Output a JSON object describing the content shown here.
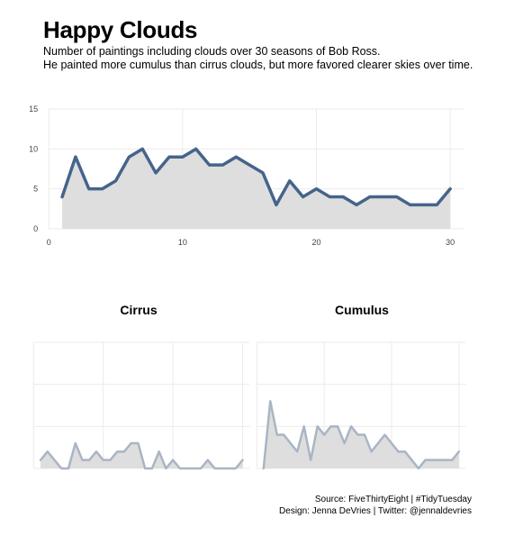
{
  "header": {
    "title": "Happy Clouds",
    "subtitle_line1": "Number of paintings including clouds over 30 seasons of Bob Ross.",
    "subtitle_line2": "He painted more cumulus than cirrus clouds, but more favored clearer skies over time."
  },
  "caption": {
    "line1": "Source: FiveThirtyEight | #TidyTuesday",
    "line2": "Design: Jenna DeVries | Twitter: @jennaldevries"
  },
  "colors": {
    "main_line": "#45648a",
    "facet_line": "#a9b5c4",
    "area_fill": "#dedede",
    "grid": "#ebebeb"
  },
  "chart_data": [
    {
      "type": "area",
      "title": "",
      "xlabel": "",
      "ylabel": "",
      "x": [
        1,
        2,
        3,
        4,
        5,
        6,
        7,
        8,
        9,
        10,
        11,
        12,
        13,
        14,
        15,
        16,
        17,
        18,
        19,
        20,
        21,
        22,
        23,
        24,
        25,
        26,
        27,
        28,
        29,
        30
      ],
      "values": [
        4,
        9,
        5,
        5,
        6,
        9,
        10,
        7,
        9,
        9,
        10,
        8,
        8,
        9,
        8,
        7,
        3,
        6,
        4,
        5,
        4,
        4,
        3,
        4,
        4,
        4,
        3,
        3,
        3,
        5
      ],
      "xlim": [
        0,
        31
      ],
      "ylim": [
        0,
        15
      ],
      "xticks": [
        0,
        10,
        20,
        30
      ],
      "yticks": [
        0,
        5,
        10,
        15
      ],
      "grid": true
    },
    {
      "type": "area",
      "facet": "Cirrus",
      "x": [
        1,
        2,
        3,
        4,
        5,
        6,
        7,
        8,
        9,
        10,
        11,
        12,
        13,
        14,
        15,
        16,
        17,
        18,
        19,
        20,
        21,
        22,
        23,
        24,
        25,
        26,
        27,
        28,
        29,
        30
      ],
      "values": [
        1,
        2,
        1,
        0,
        0,
        3,
        1,
        1,
        2,
        1,
        1,
        2,
        2,
        3,
        3,
        0,
        0,
        2,
        0,
        1,
        0,
        0,
        0,
        0,
        1,
        0,
        0,
        0,
        0,
        1
      ],
      "xlim": [
        0,
        31
      ],
      "ylim": [
        0,
        15
      ],
      "grid": true
    },
    {
      "type": "area",
      "facet": "Cumulus",
      "x": [
        1,
        2,
        3,
        4,
        5,
        6,
        7,
        8,
        9,
        10,
        11,
        12,
        13,
        14,
        15,
        16,
        17,
        18,
        19,
        20,
        21,
        22,
        23,
        24,
        25,
        26,
        27,
        28,
        29,
        30
      ],
      "values": [
        0,
        8,
        4,
        4,
        3,
        2,
        5,
        1,
        5,
        4,
        5,
        5,
        3,
        5,
        4,
        4,
        2,
        3,
        4,
        3,
        2,
        2,
        1,
        0,
        1,
        1,
        1,
        1,
        1,
        2
      ],
      "xlim": [
        0,
        31
      ],
      "ylim": [
        0,
        15
      ],
      "grid": true
    }
  ]
}
